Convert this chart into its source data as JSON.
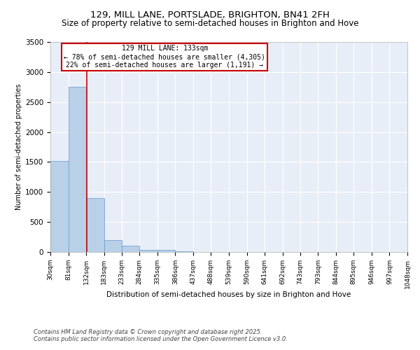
{
  "title": "129, MILL LANE, PORTSLADE, BRIGHTON, BN41 2FH",
  "subtitle": "Size of property relative to semi-detached houses in Brighton and Hove",
  "xlabel": "Distribution of semi-detached houses by size in Brighton and Hove",
  "ylabel": "Number of semi-detached properties",
  "bar_values": [
    1520,
    2750,
    900,
    200,
    100,
    40,
    30,
    15,
    5,
    3,
    2,
    1,
    1,
    1,
    0,
    0,
    0,
    0,
    0,
    0
  ],
  "bin_edges": [
    30,
    81,
    132,
    183,
    233,
    284,
    335,
    386,
    437,
    488,
    539,
    590,
    641,
    692,
    743,
    793,
    844,
    895,
    946,
    997,
    1048
  ],
  "bar_color": "#b8d0e8",
  "bar_edge_color": "#6699cc",
  "property_line_x": 133,
  "property_line_color": "#cc0000",
  "annotation_title": "129 MILL LANE: 133sqm",
  "annotation_line2": "← 78% of semi-detached houses are smaller (4,305)",
  "annotation_line3": "22% of semi-detached houses are larger (1,191) →",
  "annotation_box_color": "#ffffff",
  "annotation_box_edge_color": "#cc0000",
  "ylim": [
    0,
    3500
  ],
  "yticks": [
    0,
    500,
    1000,
    1500,
    2000,
    2500,
    3000,
    3500
  ],
  "background_color": "#e8eef8",
  "footer_line1": "Contains HM Land Registry data © Crown copyright and database right 2025.",
  "footer_line2": "Contains public sector information licensed under the Open Government Licence v3.0.",
  "title_fontsize": 9.5,
  "subtitle_fontsize": 8.5
}
